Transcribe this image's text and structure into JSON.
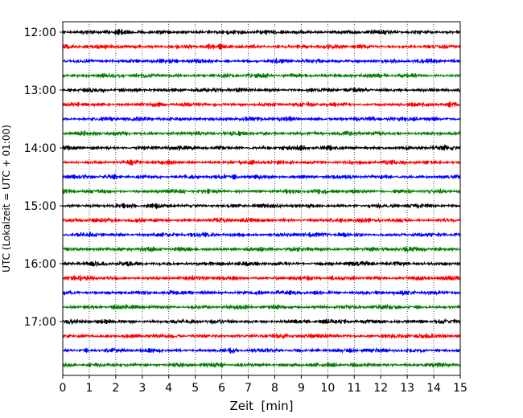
{
  "chart_data": {
    "type": "line",
    "title": "",
    "xlabel": "Zeit  [min]",
    "ylabel": "UTC (Lokalzeit = UTC + 01:00)",
    "xlim": [
      0,
      15
    ],
    "x_ticks": [
      "0",
      "1",
      "2",
      "3",
      "4",
      "5",
      "6",
      "7",
      "8",
      "9",
      "10",
      "11",
      "12",
      "13",
      "14",
      "15"
    ],
    "y_tick_labels": [
      "12:00",
      "13:00",
      "14:00",
      "15:00",
      "16:00",
      "17:00"
    ],
    "row_interval_minutes": 15,
    "row_start_times": [
      "12:00",
      "12:15",
      "12:30",
      "12:45",
      "13:00",
      "13:15",
      "13:30",
      "13:45",
      "14:00",
      "14:15",
      "14:30",
      "14:45",
      "15:00",
      "15:15",
      "15:30",
      "15:45",
      "16:00",
      "16:15",
      "16:30",
      "16:45",
      "17:00",
      "17:15",
      "17:30",
      "17:45"
    ],
    "series_color_cycle": [
      "#000000",
      "#ff0000",
      "#0000ff",
      "#008000"
    ],
    "grid": {
      "x": true,
      "style": "dotted"
    },
    "legend": "none"
  }
}
